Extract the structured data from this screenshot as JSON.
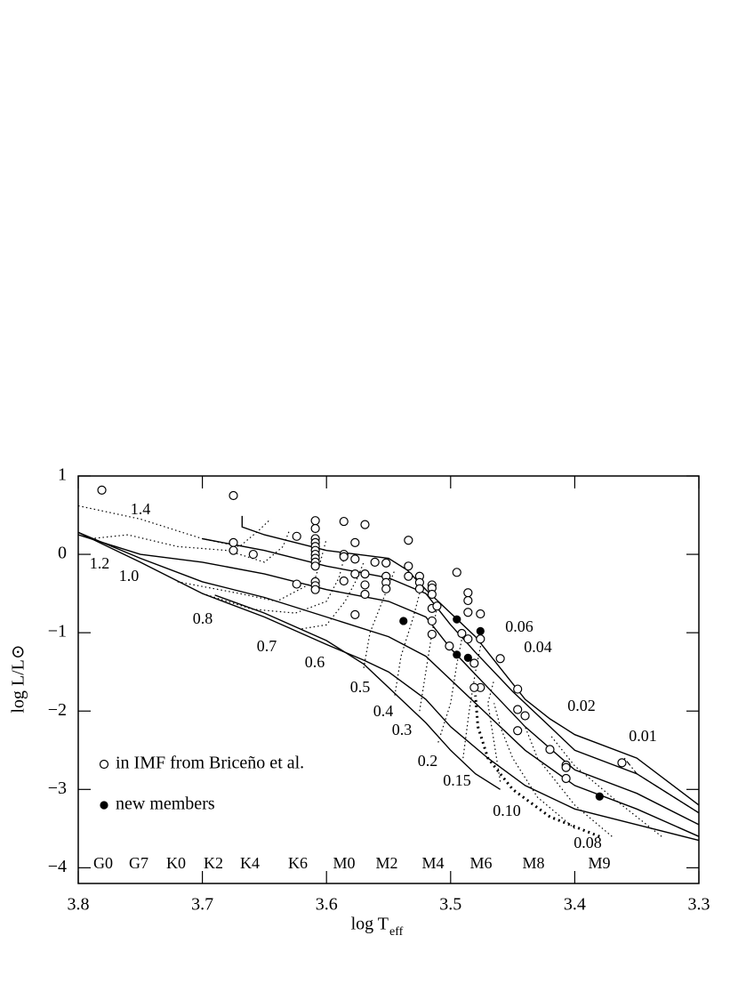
{
  "chart_data": {
    "type": "scatter",
    "x_label": "log T",
    "x_label_sub": "eff",
    "y_label": "log L/L⊙",
    "xlim": [
      3.8,
      3.3
    ],
    "xticks": [
      3.8,
      3.7,
      3.6,
      3.5,
      3.4,
      3.3
    ],
    "ylim": [
      -4.2,
      1
    ],
    "yticks": [
      1,
      0,
      {
        "value": -1,
        "label": "−1"
      },
      {
        "value": -2,
        "label": "−2"
      },
      {
        "value": -3,
        "label": "−3"
      },
      {
        "value": -4,
        "label": "−4"
      }
    ],
    "legend": "lower left",
    "series": [
      {
        "name": "in IMF from Briceño et al.",
        "marker": "open",
        "color": "#000000",
        "x": [
          3.781,
          3.675,
          3.675,
          3.675,
          3.659,
          3.624,
          3.624,
          3.609,
          3.609,
          3.609,
          3.609,
          3.609,
          3.609,
          3.609,
          3.609,
          3.609,
          3.609,
          3.609,
          3.609,
          3.609,
          3.586,
          3.586,
          3.586,
          3.586,
          3.577,
          3.577,
          3.577,
          3.577,
          3.569,
          3.569,
          3.569,
          3.569,
          3.561,
          3.552,
          3.552,
          3.552,
          3.552,
          3.534,
          3.534,
          3.534,
          3.525,
          3.525,
          3.525,
          3.515,
          3.515,
          3.515,
          3.515,
          3.515,
          3.515,
          3.511,
          3.501,
          3.495,
          3.491,
          3.486,
          3.486,
          3.486,
          3.486,
          3.481,
          3.476,
          3.476,
          3.476,
          3.481,
          3.46,
          3.446,
          3.446,
          3.446,
          3.44,
          3.42,
          3.407,
          3.407,
          3.407,
          3.362
        ],
        "values": [
          0.82,
          0.75,
          0.15,
          0.05,
          0.0,
          0.23,
          -0.38,
          0.43,
          0.33,
          0.2,
          0.15,
          0.1,
          0.05,
          0.0,
          -0.05,
          -0.1,
          -0.15,
          -0.35,
          -0.4,
          -0.45,
          0.42,
          0.0,
          -0.03,
          -0.34,
          0.15,
          -0.06,
          -0.25,
          -0.77,
          0.38,
          -0.25,
          -0.39,
          -0.51,
          -0.1,
          -0.11,
          -0.28,
          -0.36,
          -0.44,
          0.18,
          -0.15,
          -0.28,
          -0.28,
          -0.36,
          -0.44,
          -0.39,
          -0.43,
          -0.51,
          -0.69,
          -0.85,
          -1.02,
          -0.66,
          -1.17,
          -0.23,
          -1.01,
          -0.49,
          -0.59,
          -0.74,
          -1.08,
          -1.39,
          -0.76,
          -1.08,
          -1.7,
          -1.7,
          -1.33,
          -1.72,
          -1.98,
          -2.25,
          -2.06,
          -2.49,
          -2.69,
          -2.72,
          -2.86,
          -2.66
        ]
      },
      {
        "name": "new members",
        "marker": "filled",
        "color": "#000000",
        "x": [
          3.538,
          3.495,
          3.495,
          3.486,
          3.476,
          3.38
        ],
        "values": [
          -0.85,
          -0.83,
          -1.28,
          -1.32,
          -0.98,
          -3.09
        ]
      }
    ],
    "isochrones": [
      {
        "x": [
          3.668,
          3.668,
          3.65,
          3.6,
          3.55,
          3.535,
          3.52,
          3.5,
          3.48,
          3.46,
          3.44,
          3.42,
          3.4,
          3.35,
          3.3
        ],
        "values": [
          0.49,
          0.35,
          0.25,
          0.05,
          -0.05,
          -0.2,
          -0.45,
          -0.75,
          -1.05,
          -1.45,
          -1.85,
          -2.1,
          -2.3,
          -2.6,
          -3.2
        ]
      },
      {
        "x": [
          3.7,
          3.65,
          3.6,
          3.55,
          3.52,
          3.5,
          3.48,
          3.45,
          3.42,
          3.4,
          3.35,
          3.3
        ],
        "values": [
          0.2,
          0.05,
          -0.15,
          -0.3,
          -0.5,
          -0.9,
          -1.25,
          -1.75,
          -2.2,
          -2.5,
          -2.8,
          -3.3
        ]
      },
      {
        "x": [
          3.8,
          3.75,
          3.7,
          3.65,
          3.6,
          3.55,
          3.52,
          3.5,
          3.47,
          3.44,
          3.4,
          3.35,
          3.3
        ],
        "values": [
          0.25,
          0.0,
          -0.1,
          -0.25,
          -0.45,
          -0.6,
          -0.8,
          -1.2,
          -1.7,
          -2.2,
          -2.75,
          -3.05,
          -3.45
        ]
      },
      {
        "x": [
          3.8,
          3.75,
          3.7,
          3.65,
          3.6,
          3.55,
          3.52,
          3.5,
          3.47,
          3.44,
          3.4,
          3.35,
          3.3
        ],
        "values": [
          0.28,
          -0.05,
          -0.35,
          -0.55,
          -0.8,
          -1.05,
          -1.3,
          -1.6,
          -2.05,
          -2.5,
          -2.95,
          -3.25,
          -3.6
        ]
      },
      {
        "x": [
          3.8,
          3.75,
          3.7,
          3.65,
          3.6,
          3.57,
          3.55,
          3.52,
          3.5,
          3.47,
          3.44,
          3.4,
          3.35,
          3.3
        ],
        "values": [
          0.28,
          -0.1,
          -0.5,
          -0.8,
          -1.15,
          -1.35,
          -1.5,
          -1.85,
          -2.2,
          -2.6,
          -2.95,
          -3.25,
          -3.45,
          -3.65
        ]
      },
      {
        "x": [
          3.69,
          3.65,
          3.6,
          3.57,
          3.55,
          3.52,
          3.5,
          3.48,
          3.46
        ],
        "values": [
          -0.52,
          -0.75,
          -1.1,
          -1.4,
          -1.7,
          -2.15,
          -2.5,
          -2.8,
          -3.0
        ]
      }
    ],
    "tracks": [
      {
        "style": "dotted",
        "x": [
          3.8,
          3.75,
          3.7,
          3.67,
          3.655,
          3.645
        ],
        "values": [
          0.62,
          0.45,
          0.2,
          0.1,
          0.3,
          0.45
        ]
      },
      {
        "style": "dotted",
        "x": [
          3.79,
          3.76,
          3.72,
          3.68,
          3.65,
          3.635,
          3.63
        ],
        "values": [
          0.2,
          0.25,
          0.1,
          0.05,
          -0.1,
          0.1,
          0.3
        ]
      },
      {
        "style": "dotted",
        "x": [
          3.72,
          3.67,
          3.64,
          3.61,
          3.605,
          3.6
        ],
        "values": [
          -0.35,
          -0.5,
          -0.6,
          -0.35,
          -0.1,
          0.2
        ]
      },
      {
        "style": "dotted",
        "x": [
          3.7,
          3.66,
          3.625,
          3.6,
          3.59,
          3.585
        ],
        "values": [
          -0.5,
          -0.7,
          -0.75,
          -0.6,
          -0.3,
          0.0
        ]
      },
      {
        "style": "dotted",
        "x": [
          3.62,
          3.6,
          3.585,
          3.575,
          3.57
        ],
        "values": [
          -0.95,
          -0.9,
          -0.6,
          -0.3,
          -0.1
        ]
      },
      {
        "style": "dotted",
        "x": [
          3.57,
          3.565,
          3.555,
          3.545
        ],
        "values": [
          -1.45,
          -1.0,
          -0.6,
          -0.2
        ]
      },
      {
        "style": "dotted",
        "x": [
          3.545,
          3.54,
          3.53,
          3.525
        ],
        "values": [
          -1.8,
          -1.3,
          -0.8,
          -0.5
        ]
      },
      {
        "style": "dotted",
        "x": [
          3.525,
          3.52,
          3.515,
          3.51
        ],
        "values": [
          -2.0,
          -1.5,
          -1.0,
          -0.6
        ]
      },
      {
        "style": "dotted",
        "x": [
          3.51,
          3.5,
          3.495,
          3.49
        ],
        "values": [
          -2.4,
          -1.9,
          -1.4,
          -1.0
        ]
      },
      {
        "style": "dotted",
        "x": [
          3.49,
          3.485,
          3.48,
          3.475
        ],
        "values": [
          -2.6,
          -2.0,
          -1.5,
          -1.1
        ]
      },
      {
        "style": "dotted",
        "x": [
          3.46,
          3.465,
          3.47,
          3.465
        ],
        "values": [
          -2.9,
          -2.4,
          -1.9,
          -1.6
        ]
      },
      {
        "style": "heavy-dotted",
        "x": [
          3.38,
          3.42,
          3.45,
          3.47,
          3.478,
          3.48
        ],
        "values": [
          -3.6,
          -3.35,
          -3.0,
          -2.6,
          -2.2,
          -1.8
        ]
      },
      {
        "style": "dotted",
        "x": [
          3.4,
          3.43,
          3.45,
          3.46,
          3.465
        ],
        "values": [
          -3.5,
          -3.1,
          -2.6,
          -2.2,
          -1.9
        ]
      },
      {
        "style": "dotted",
        "x": [
          3.37,
          3.4,
          3.43,
          3.44
        ],
        "values": [
          -3.6,
          -3.2,
          -2.6,
          -2.2
        ]
      },
      {
        "style": "dotted",
        "x": [
          3.33,
          3.37,
          3.4,
          3.42
        ],
        "values": [
          -3.6,
          -3.1,
          -2.7,
          -2.3
        ]
      },
      {
        "style": "dash-dot",
        "x": [
          3.3,
          3.35,
          3.36
        ],
        "values": [
          -3.3,
          -2.8,
          -2.6
        ]
      }
    ],
    "mass_labels": [
      "1.4",
      "1.2",
      "1.0",
      "0.8",
      "0.7",
      "0.6",
      "0.5",
      "0.4",
      "0.3",
      "0.2",
      "0.15",
      "0.10",
      "0.08",
      "0.06",
      "0.04",
      "0.02",
      "0.01"
    ],
    "spectral_types": [
      "G0",
      "G7",
      "K0",
      "K2",
      "K4",
      "K6",
      "M0",
      "M2",
      "M4",
      "M6",
      "M8",
      "M9"
    ]
  }
}
